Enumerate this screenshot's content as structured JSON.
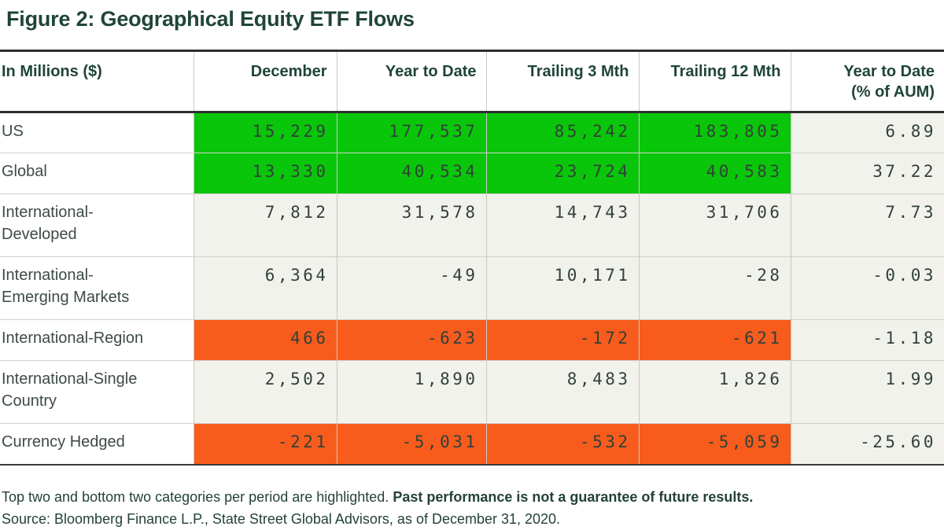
{
  "title": "Figure 2: Geographical Equity ETF Flows",
  "colors": {
    "dark_green": "#1F4537",
    "highlight_green": "#0AC60A",
    "highlight_orange": "#F75C1D",
    "cell_beige": "#F2F2ED"
  },
  "table": {
    "header": {
      "col0": "In Millions ($)",
      "col1": "December",
      "col2": "Year to Date",
      "col3": "Trailing 3 Mth",
      "col4": "Trailing 12 Mth",
      "col5_line1": "Year to Date",
      "col5_line2": "(% of AUM)"
    },
    "rows": [
      {
        "label": "US",
        "label_lines": [
          "US"
        ],
        "values": [
          "15,229",
          "177,537",
          "85,242",
          "183,805",
          "6.89"
        ],
        "highlight": "green"
      },
      {
        "label": "Global",
        "label_lines": [
          "Global"
        ],
        "values": [
          "13,330",
          "40,534",
          "23,724",
          "40,583",
          "37.22"
        ],
        "highlight": "green"
      },
      {
        "label": "International-Developed",
        "label_lines": [
          "International-",
          "Developed"
        ],
        "values": [
          "7,812",
          "31,578",
          "14,743",
          "31,706",
          "7.73"
        ],
        "highlight": "none"
      },
      {
        "label": "International-Emerging Markets",
        "label_lines": [
          "International-",
          "Emerging Markets"
        ],
        "values": [
          "6,364",
          "-49",
          "10,171",
          "-28",
          "-0.03"
        ],
        "highlight": "none"
      },
      {
        "label": "International-Region",
        "label_lines": [
          "International-Region"
        ],
        "values": [
          "466",
          "-623",
          "-172",
          "-621",
          "-1.18"
        ],
        "highlight": "orange"
      },
      {
        "label": "International-Single Country",
        "label_lines": [
          "International-Single",
          "Country"
        ],
        "values": [
          "2,502",
          "1,890",
          "8,483",
          "1,826",
          "1.99"
        ],
        "highlight": "none"
      },
      {
        "label": "Currency Hedged",
        "label_lines": [
          "Currency Hedged"
        ],
        "values": [
          "-221",
          "-5,031",
          "-532",
          "-5,059",
          "-25.60"
        ],
        "highlight": "orange"
      }
    ]
  },
  "footnotes": {
    "line1_regular": "Top two and bottom two categories per period are highlighted. ",
    "line1_bold": "Past performance is not a guarantee of future results.",
    "source": "Source: Bloomberg Finance L.P., State Street Global Advisors, as of December 31, 2020."
  },
  "chart_data": {
    "type": "table",
    "title": "Figure 2: Geographical Equity ETF Flows",
    "units": "In Millions ($); last column is percent of AUM",
    "columns": [
      "In Millions ($)",
      "December",
      "Year to Date",
      "Trailing 3 Mth",
      "Trailing 12 Mth",
      "Year to Date (% of AUM)"
    ],
    "rows": [
      [
        "US",
        15229,
        177537,
        85242,
        183805,
        6.89
      ],
      [
        "Global",
        13330,
        40534,
        23724,
        40583,
        37.22
      ],
      [
        "International-Developed",
        7812,
        31578,
        14743,
        31706,
        7.73
      ],
      [
        "International-Emerging Markets",
        6364,
        -49,
        10171,
        -28,
        -0.03
      ],
      [
        "International-Region",
        466,
        -623,
        -172,
        -621,
        -1.18
      ],
      [
        "International-Single Country",
        2502,
        1890,
        8483,
        1826,
        1.99
      ],
      [
        "Currency Hedged",
        -221,
        -5031,
        -532,
        -5059,
        -25.6
      ]
    ],
    "highlighted_green_rows": [
      "US",
      "Global"
    ],
    "highlighted_orange_rows": [
      "International-Region",
      "Currency Hedged"
    ],
    "highlight_note": "Top two and bottom two categories per period are highlighted"
  }
}
